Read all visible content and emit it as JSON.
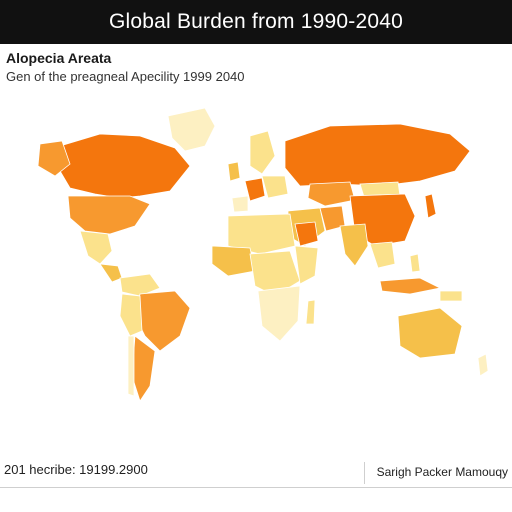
{
  "header": {
    "title": "Global Burden from 1990-2040"
  },
  "subtitle": "Alopecia Areata",
  "caption": "Gen of the preagneal Apecility 1999 2040",
  "footer": {
    "left_text": "201 hecribe: 19199.2900",
    "right_text": "Sarigh Packer Mamouqy"
  },
  "colors": {
    "highest": "#f4760d",
    "high": "#f7992f",
    "medium": "#f5c04a",
    "low": "#fbe28c",
    "lowest": "#fdf0c2"
  }
}
